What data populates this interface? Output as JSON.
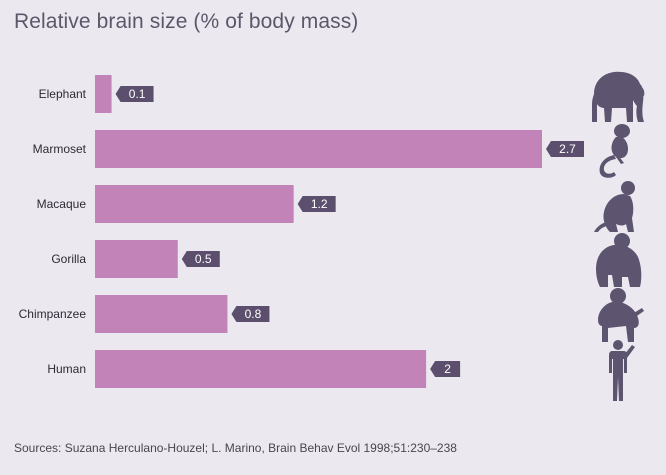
{
  "title": "Relative brain size (% of body mass)",
  "source": "Sources: Suzana Herculano-Houzel; L. Marino, Brain Behav Evol 1998;51:230–238",
  "colors": {
    "background": "#ebe9ef",
    "bar": "#c283b9",
    "label_box": "#5b4f6d",
    "animal_icon": "#5d5470"
  },
  "chart_data": {
    "type": "bar",
    "orientation": "horizontal",
    "categories": [
      "Elephant",
      "Marmoset",
      "Macaque",
      "Gorilla",
      "Chimpanzee",
      "Human"
    ],
    "values": [
      0.1,
      2.7,
      1.2,
      0.5,
      0.8,
      2
    ],
    "value_labels": [
      "0.1",
      "2.7",
      "1.2",
      "0.5",
      "0.8",
      "2"
    ],
    "icons": [
      "elephant-icon",
      "marmoset-icon",
      "macaque-icon",
      "gorilla-icon",
      "chimpanzee-icon",
      "human-icon"
    ],
    "title": "Relative brain size (% of body mass)",
    "xlabel": "",
    "ylabel": "",
    "xlim": [
      0,
      2.7
    ],
    "grid": false,
    "legend": "none"
  }
}
